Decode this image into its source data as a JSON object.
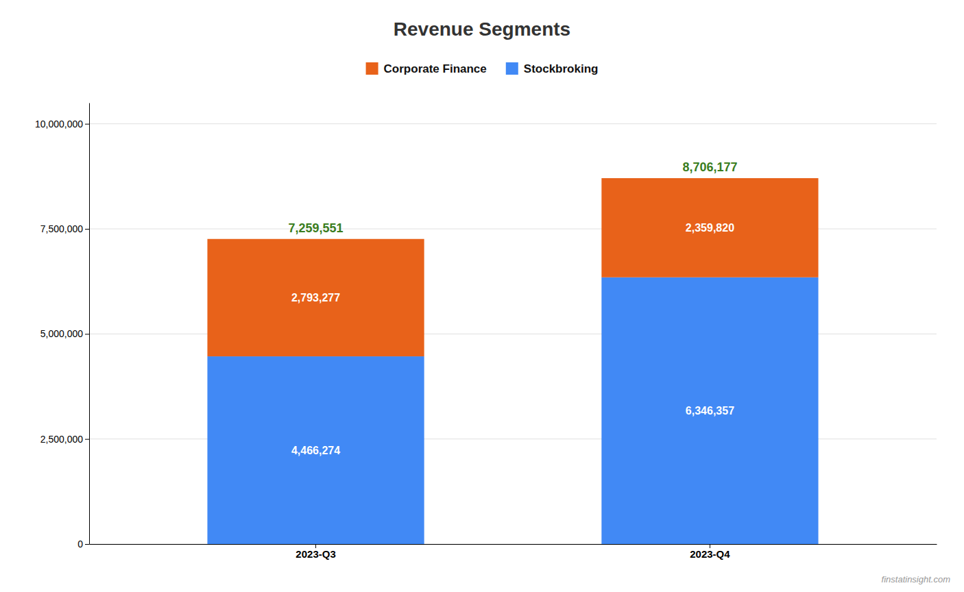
{
  "chart_data": {
    "type": "bar",
    "title": "Revenue Segments",
    "categories": [
      "2023-Q3",
      "2023-Q4"
    ],
    "stacked": true,
    "data_labels": true,
    "grid": true,
    "legend": "top",
    "series": [
      {
        "name": "Stockbroking",
        "color": "#4189f5",
        "values": [
          4466274,
          6346357
        ],
        "value_labels": [
          "4,466,274",
          "6,346,357"
        ]
      },
      {
        "name": "Corporate Finance",
        "color": "#e8621a",
        "values": [
          2793277,
          2359820
        ],
        "value_labels": [
          "2,793,277",
          "2,359,820"
        ]
      }
    ],
    "totals": {
      "values": [
        7259551,
        8706177
      ],
      "value_labels": [
        "7,259,551",
        "8,706,177"
      ],
      "color": "#3a7d1e"
    },
    "ylim": [
      0,
      10500000
    ],
    "yticks": [
      0,
      {
        "value": 2500000,
        "label": "2,500,000"
      },
      {
        "value": 5000000,
        "label": "5,000,000"
      },
      {
        "value": 7500000,
        "label": "7,500,000"
      },
      {
        "value": 10000000,
        "label": "10,000,000"
      }
    ],
    "annotations": [
      "finstatinsight.com"
    ]
  }
}
